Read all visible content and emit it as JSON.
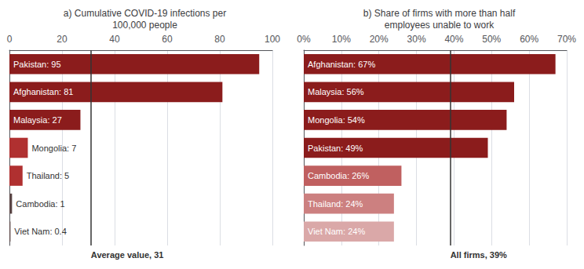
{
  "chart_data": [
    {
      "type": "bar",
      "orientation": "horizontal",
      "title": "a) Cumulative COVID-19 infections per\n100,000 people",
      "categories": [
        "Pakistan: 95",
        "Afghanistan: 81",
        "Malaysia: 27",
        "Mongolia: 7",
        "Thailand: 5",
        "Cambodia: 1",
        "Viet Nam: 0.4"
      ],
      "values": [
        95,
        81,
        27,
        7,
        5,
        1,
        0.4
      ],
      "colors": [
        "#8b1c1c",
        "#8b1c1c",
        "#8b1c1c",
        "#b03030",
        "#b03030",
        "#5a4545",
        "#5a4545"
      ],
      "xlim": [
        0,
        100
      ],
      "xticks": [
        0,
        20,
        40,
        60,
        80,
        100
      ],
      "grid": true,
      "tick_labels": "x",
      "reference_line": {
        "value": 31,
        "label": "Average value, 31"
      }
    },
    {
      "type": "bar",
      "orientation": "horizontal",
      "title": "b) Share of firms with more than half\nemployees unable to work",
      "categories": [
        "Afghanistan: 67%",
        "Malaysia: 56%",
        "Mongolia: 54%",
        "Pakistan: 49%",
        "Cambodia: 26%",
        "Thailand: 24%",
        "Viet Nam: 24%"
      ],
      "values": [
        67,
        56,
        54,
        49,
        26,
        24,
        24
      ],
      "colors": [
        "#8b1c1c",
        "#8b1c1c",
        "#8b1c1c",
        "#8b1c1c",
        "#c06060",
        "#cc8080",
        "#daa8a8"
      ],
      "xlim": [
        0,
        70
      ],
      "xticks": [
        {
          "value": 0,
          "label": "0%"
        },
        {
          "value": 10,
          "label": "10%"
        },
        {
          "value": 20,
          "label": "20%"
        },
        {
          "value": 30,
          "label": "30%"
        },
        {
          "value": 40,
          "label": "40%"
        },
        {
          "value": 50,
          "label": "50%"
        },
        {
          "value": 60,
          "label": "60%"
        },
        {
          "value": 70,
          "label": "70%"
        }
      ],
      "grid": true,
      "tick_labels": "x",
      "reference_line": {
        "value": 39,
        "label": "All firms, 39%"
      }
    }
  ]
}
